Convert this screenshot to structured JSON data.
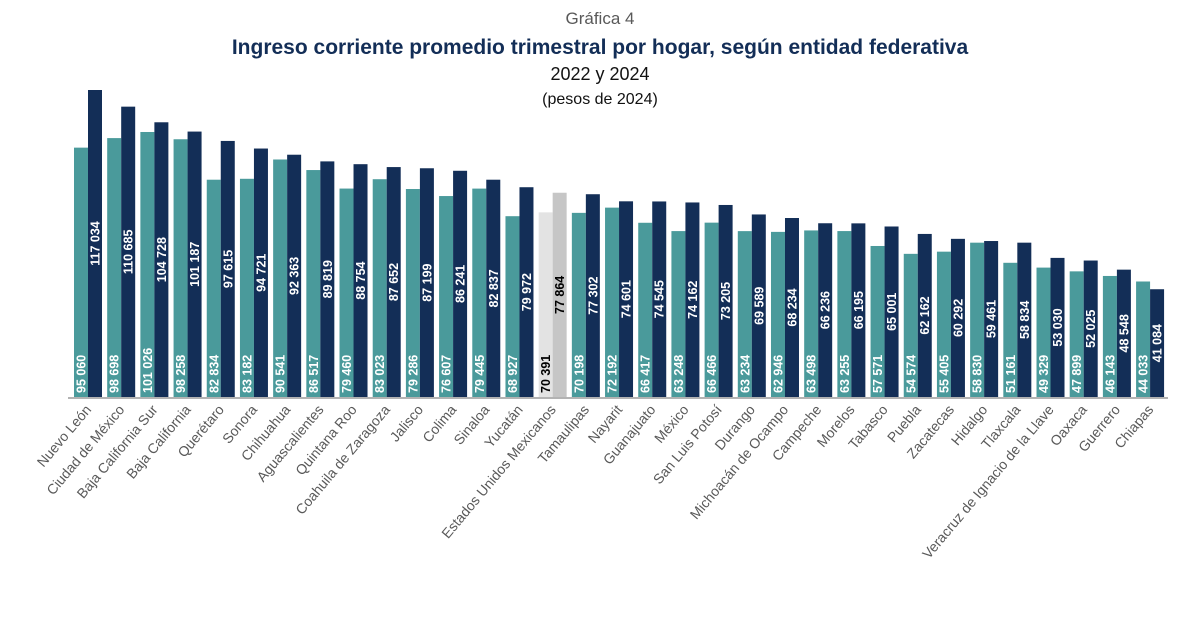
{
  "chart_data": {
    "type": "bar",
    "label": "Gráfica 4",
    "title": "Ingreso corriente promedio trimestral por hogar, según entidad federativa",
    "subtitle": "2022 y 2024",
    "units": "(pesos de 2024)",
    "highlight_category": "Estados Unidos Mexicanos",
    "colors": {
      "s2022": "#4a9a9b",
      "s2024": "#132e57",
      "avg2022": "#e3e3e3",
      "avg2024": "#c6c6c6",
      "title": "#132e57",
      "label": "#595959"
    },
    "categories": [
      "Nuevo León",
      "Ciudad de México",
      "Baja California Sur",
      "Baja California",
      "Querétaro",
      "Sonora",
      "Chihuahua",
      "Aguascalientes",
      "Quintana Roo",
      "Coahuila de Zaragoza",
      "Jalisco",
      "Colima",
      "Sinaloa",
      "Yucatán",
      "Estados Unidos Mexicanos",
      "Tamaulipas",
      "Nayarit",
      "Guanajuato",
      "México",
      "San Luis Potosí",
      "Durango",
      "Michoacán de Ocampo",
      "Campeche",
      "Morelos",
      "Tabasco",
      "Puebla",
      "Zacatecas",
      "Hidalgo",
      "Tlaxcala",
      "Veracruz de Ignacio de la Llave",
      "Oaxaca",
      "Guerrero",
      "Chiapas"
    ],
    "series": [
      {
        "values": [
          95060,
          98698,
          101026,
          98258,
          82834,
          83182,
          90541,
          86517,
          79460,
          83023,
          79286,
          76607,
          79445,
          68927,
          70391,
          70198,
          72192,
          66417,
          63248,
          66466,
          63234,
          62946,
          63498,
          63255,
          57571,
          54574,
          55405,
          58830,
          51161,
          49329,
          47899,
          46143,
          44033
        ]
      },
      {
        "values": [
          117034,
          110685,
          104728,
          101187,
          97615,
          94721,
          92363,
          89819,
          88754,
          87652,
          87199,
          86241,
          82837,
          79972,
          77864,
          77302,
          74601,
          74545,
          74162,
          73205,
          69589,
          68234,
          66236,
          66195,
          65001,
          62162,
          60292,
          59461,
          58834,
          53030,
          52025,
          48548,
          41084
        ]
      }
    ],
    "ylim": [
      0,
      117034
    ],
    "grid": false,
    "legend": "none"
  }
}
